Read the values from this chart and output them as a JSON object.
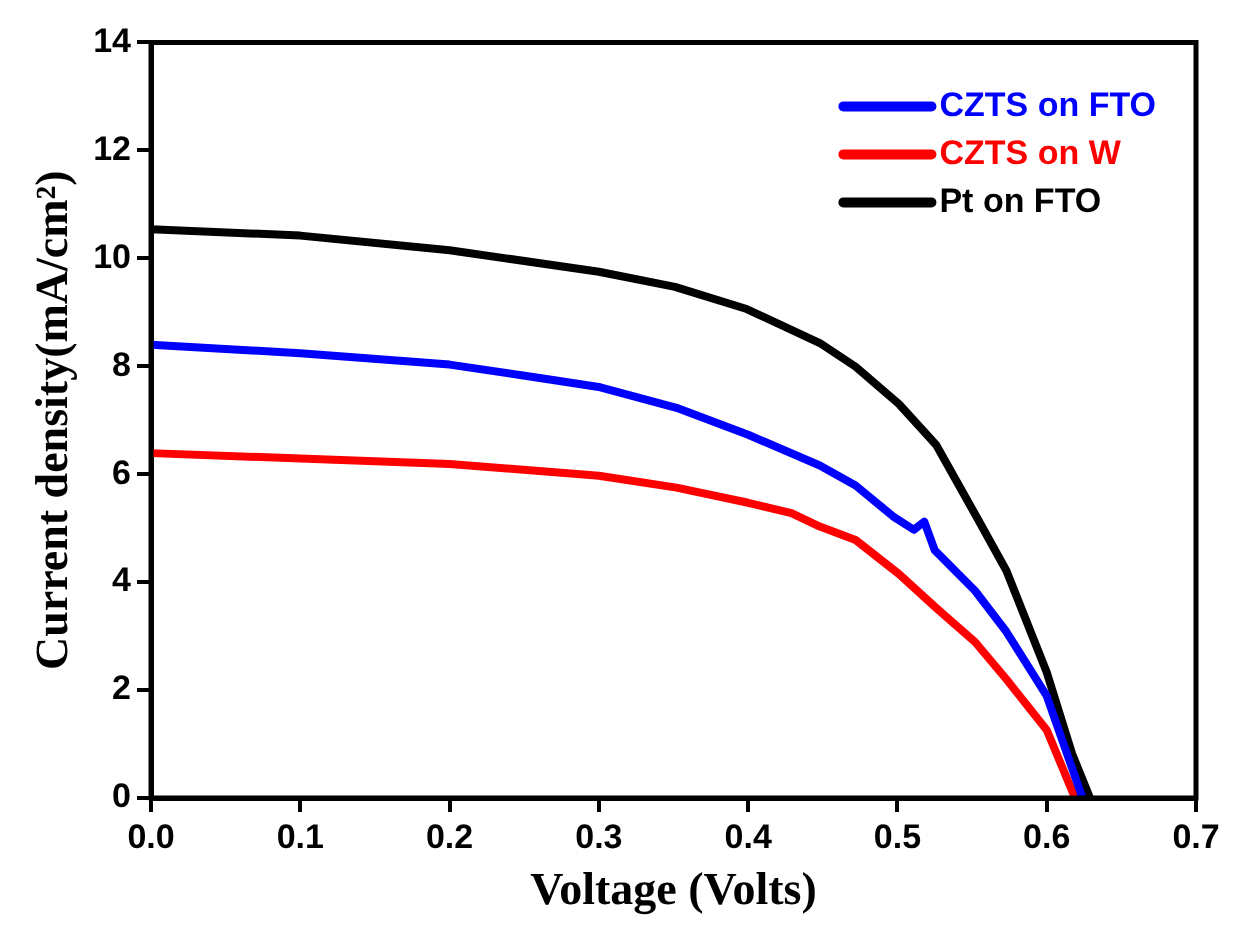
{
  "chart_data": {
    "type": "line",
    "xlabel": "Voltage (Volts)",
    "ylabel": "Current density(mA/cm²)",
    "xlim": [
      0,
      0.7
    ],
    "xticks": [
      {
        "value": 0,
        "label": "0.0"
      },
      0.1,
      0.2,
      0.3,
      0.4,
      0.5,
      0.6,
      0.7
    ],
    "ylim": [
      0,
      14
    ],
    "yticks": [
      0,
      2,
      4,
      6,
      8,
      10,
      12,
      14
    ],
    "grid": false,
    "legend": "top right",
    "marker": "none",
    "line_style": "solid",
    "series": [
      {
        "name": "CZTS on FTO",
        "color": "#0000ff",
        "x": [
          0,
          0.1,
          0.2,
          0.256,
          0.301,
          0.352,
          0.4,
          0.448,
          0.472,
          0.497,
          0.511,
          0.518,
          0.525,
          0.552,
          0.573,
          0.6,
          0.624
        ],
        "values": [
          8.4,
          8.24,
          8.03,
          7.8,
          7.61,
          7.23,
          6.73,
          6.16,
          5.79,
          5.22,
          4.97,
          5.12,
          4.59,
          3.84,
          3.08,
          1.89,
          0
        ]
      },
      {
        "name": "CZTS on W",
        "color": "#ff0000",
        "x": [
          0,
          0.1,
          0.2,
          0.3,
          0.352,
          0.4,
          0.429,
          0.448,
          0.472,
          0.501,
          0.526,
          0.552,
          0.573,
          0.6,
          0.619
        ],
        "values": [
          6.39,
          6.29,
          6.19,
          5.97,
          5.75,
          5.47,
          5.28,
          5.03,
          4.78,
          4.15,
          3.52,
          2.89,
          2.2,
          1.26,
          0
        ]
      },
      {
        "name": "Pt on FTO",
        "color": "#000000",
        "x": [
          0,
          0.1,
          0.2,
          0.3,
          0.351,
          0.399,
          0.448,
          0.472,
          0.501,
          0.526,
          0.554,
          0.573,
          0.6,
          0.617,
          0.629
        ],
        "values": [
          10.54,
          10.42,
          10.15,
          9.75,
          9.47,
          9.06,
          8.43,
          7.99,
          7.3,
          6.54,
          5.16,
          4.21,
          2.33,
          0.82,
          0
        ]
      }
    ]
  }
}
